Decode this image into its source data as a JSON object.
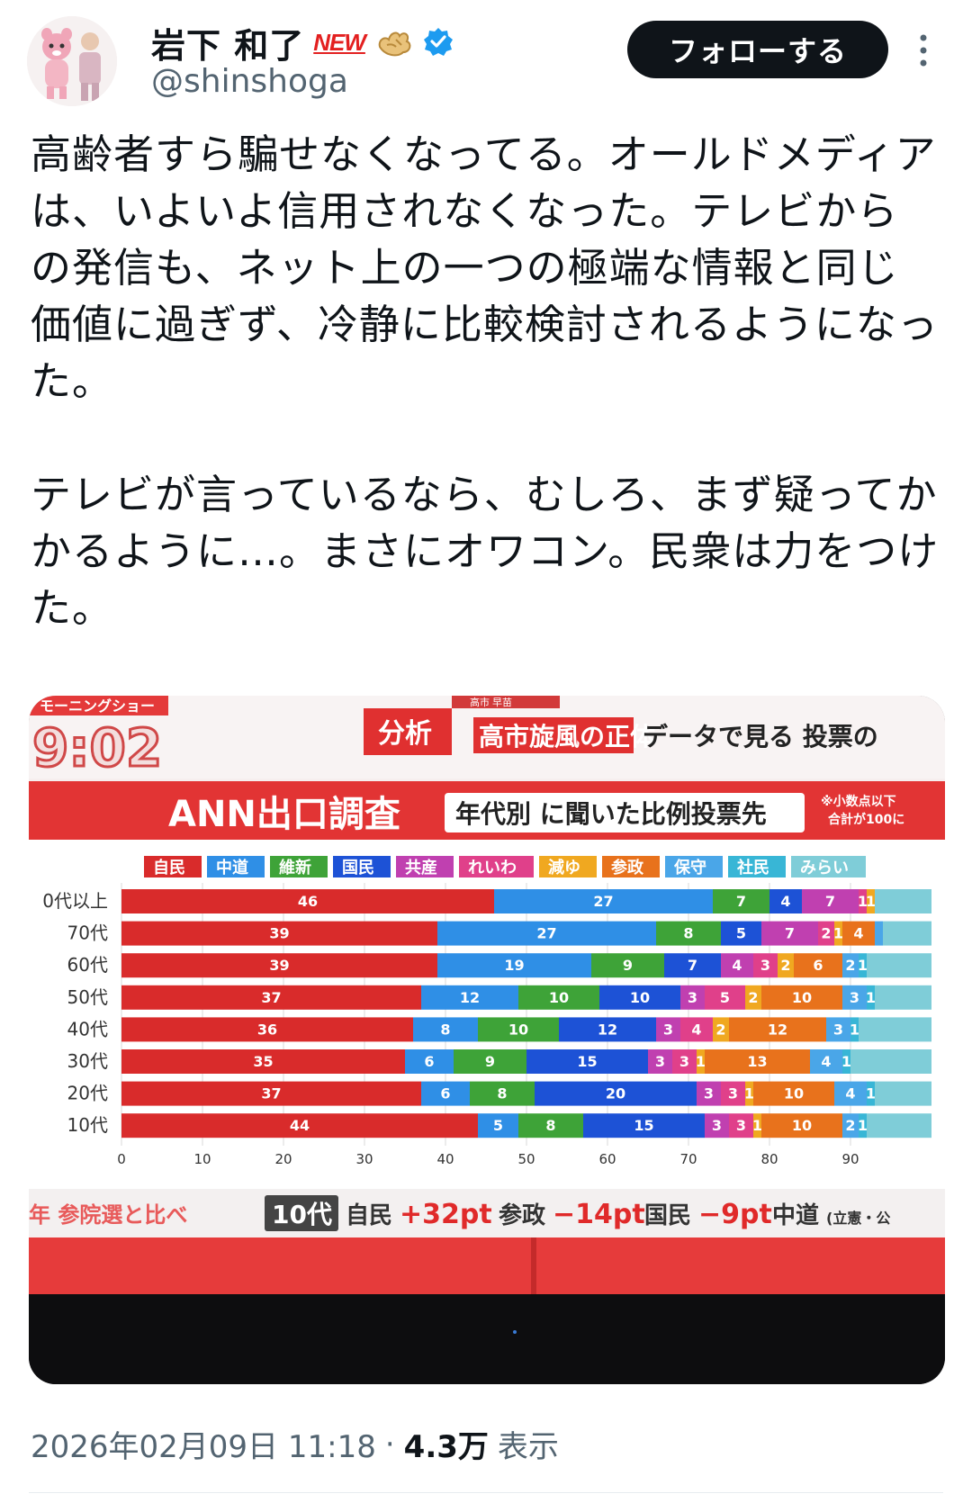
{
  "user": {
    "display_name": "岩下 和了",
    "badge": "NEW",
    "handle": "@shinshoga",
    "verified_icon": "verified-badge-icon",
    "emoji_icon": "ginger-emoji-icon"
  },
  "actions": {
    "follow_label": "フォローする",
    "more_icon": "more-vertical-icon"
  },
  "tweet": {
    "paragraph1": "高齢者すら騙せなくなってる。オールドメディアは、いよいよ信用されなくなった。テレビからの発信も、ネット上の一つの極端な情報と同じ価値に過ぎず、冷静に比較検討されるようになった。",
    "paragraph2": "テレビが言っているなら、むしろ、まず疑ってかかるように…。まさにオワコン。民衆は力をつけた。"
  },
  "media": {
    "program": "モーニングショー",
    "clock": "9:02",
    "tag": "分析",
    "headline_box": "高市旋風の正体",
    "headline_rest": "データで見る 投票の",
    "small_top": "高市 早苗",
    "survey_title": "ANN出口調査",
    "survey_subtitle": "年代別 に聞いた比例投票先",
    "note_line1": "※小数点以下",
    "note_line2": "合計が100に",
    "bottom_caption_left": "年 参院選と比べ",
    "bottom_caption_tag": "10代",
    "bottom_caption_p1_label": "自民",
    "bottom_caption_p1_value": "+32pt",
    "bottom_caption_p2_label": "参政",
    "bottom_caption_p2_value": "−14pt",
    "bottom_caption_p3_label": "国民",
    "bottom_caption_p3_value": "−9pt",
    "bottom_caption_p4_label": "中道",
    "bottom_caption_p4_note": "(立憲・公"
  },
  "chart_data": {
    "type": "bar",
    "title": "ANN出口調査",
    "subtitle": "年代別 に聞いた比例投票先",
    "orientation": "horizontal-stacked",
    "categories": [
      "0代以上",
      "70代",
      "60代",
      "50代",
      "40代",
      "30代",
      "20代",
      "10代"
    ],
    "xlim": [
      0,
      100
    ],
    "xticks": [
      0,
      10,
      20,
      30,
      40,
      50,
      60,
      70,
      80,
      90
    ],
    "legend_position": "top",
    "series": [
      {
        "name": "自民",
        "color": "#d92b2b",
        "values": [
          46,
          39,
          39,
          37,
          36,
          35,
          37,
          44
        ]
      },
      {
        "name": "中道",
        "color": "#2f8fe6",
        "values": [
          27,
          27,
          19,
          12,
          8,
          6,
          6,
          5
        ]
      },
      {
        "name": "維新",
        "color": "#3ea338",
        "values": [
          7,
          8,
          9,
          10,
          10,
          9,
          8,
          8
        ]
      },
      {
        "name": "国民",
        "color": "#1d52d6",
        "values": [
          4,
          5,
          7,
          10,
          12,
          15,
          20,
          15
        ]
      },
      {
        "name": "共産",
        "color": "#c040b0",
        "values": [
          7,
          7,
          4,
          3,
          3,
          3,
          3,
          3
        ]
      },
      {
        "name": "れいわ",
        "color": "#e0408a",
        "values": [
          1,
          2,
          3,
          5,
          4,
          3,
          3,
          3
        ]
      },
      {
        "name": "減ゆ",
        "color": "#f0a820",
        "values": [
          1,
          1,
          2,
          2,
          2,
          1,
          1,
          1
        ]
      },
      {
        "name": "参政",
        "color": "#e8721c",
        "values": [
          null,
          4,
          6,
          10,
          12,
          13,
          10,
          10
        ]
      },
      {
        "name": "保守",
        "color": "#4aa6e8",
        "values": [
          null,
          1,
          2,
          3,
          3,
          4,
          4,
          2
        ]
      },
      {
        "name": "社民",
        "color": "#38b6d6",
        "values": [
          null,
          null,
          1,
          1,
          1,
          1,
          1,
          1
        ]
      },
      {
        "name": "みらい",
        "color": "#7fcdd8",
        "values": [
          null,
          null,
          null,
          null,
          null,
          null,
          null,
          null
        ]
      }
    ],
    "data_labels": [
      [
        "46",
        "27",
        "7",
        "4",
        "7",
        "1",
        "1"
      ],
      [
        "39",
        "27",
        "8",
        "5",
        "7",
        "2",
        "1",
        "4"
      ],
      [
        "39",
        "19",
        "9",
        "7",
        "4",
        "3",
        "2",
        "6",
        "2",
        "1"
      ],
      [
        "37",
        "12",
        "10",
        "10",
        "3",
        "5",
        "2",
        "10",
        "3",
        "1"
      ],
      [
        "36",
        "8",
        "10",
        "12",
        "3",
        "4",
        "2",
        "12",
        "3",
        "1"
      ],
      [
        "35",
        "6",
        "9",
        "15",
        "3",
        "3",
        "1",
        "13",
        "4",
        "1"
      ],
      [
        "37",
        "6",
        "8",
        "20",
        "3",
        "3",
        "1",
        "10",
        "4",
        "1"
      ],
      [
        "44",
        "5",
        "8",
        "15",
        "3",
        "3",
        "1",
        "10",
        "2",
        "1"
      ]
    ]
  },
  "footer": {
    "date": "2026年02月09日 11:18",
    "separator": "·",
    "views": "4.3万",
    "views_label": "表示"
  }
}
